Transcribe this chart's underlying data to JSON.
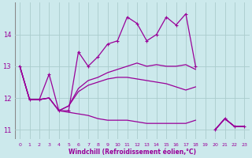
{
  "xlabel": "Windchill (Refroidissement éolien,°C)",
  "ylabel": "",
  "bg_color": "#cce9ec",
  "line_color": "#990099",
  "grid_color": "#aacccc",
  "xlim": [
    -0.5,
    23.5
  ],
  "ylim": [
    10.7,
    15.0
  ],
  "yticks": [
    11,
    12,
    13,
    14
  ],
  "xticks": [
    0,
    1,
    2,
    3,
    4,
    5,
    6,
    7,
    8,
    9,
    10,
    11,
    12,
    13,
    14,
    15,
    16,
    17,
    18,
    19,
    20,
    21,
    22,
    23
  ],
  "series": [
    [
      13.0,
      11.95,
      11.95,
      12.75,
      11.6,
      11.6,
      13.45,
      13.0,
      13.3,
      13.7,
      13.8,
      14.55,
      14.35,
      13.8,
      14.0,
      14.55,
      14.3,
      14.65,
      13.0,
      null,
      11.0,
      11.35,
      11.1,
      11.1
    ],
    [
      13.0,
      11.95,
      11.95,
      12.0,
      11.6,
      11.75,
      12.3,
      12.55,
      12.65,
      12.8,
      12.9,
      13.0,
      13.1,
      13.0,
      13.05,
      13.0,
      13.0,
      13.05,
      12.9,
      null,
      11.0,
      11.35,
      11.1,
      11.1
    ],
    [
      13.0,
      11.95,
      11.95,
      12.0,
      11.6,
      11.75,
      12.2,
      12.4,
      12.5,
      12.6,
      12.65,
      12.65,
      12.6,
      12.55,
      12.5,
      12.45,
      12.35,
      12.25,
      12.35,
      null,
      11.0,
      11.35,
      11.1,
      11.1
    ],
    [
      13.0,
      11.95,
      11.95,
      12.0,
      11.6,
      11.55,
      11.5,
      11.45,
      11.35,
      11.3,
      11.3,
      11.3,
      11.25,
      11.2,
      11.2,
      11.2,
      11.2,
      11.2,
      11.3,
      null,
      11.0,
      11.35,
      11.1,
      11.1
    ]
  ]
}
